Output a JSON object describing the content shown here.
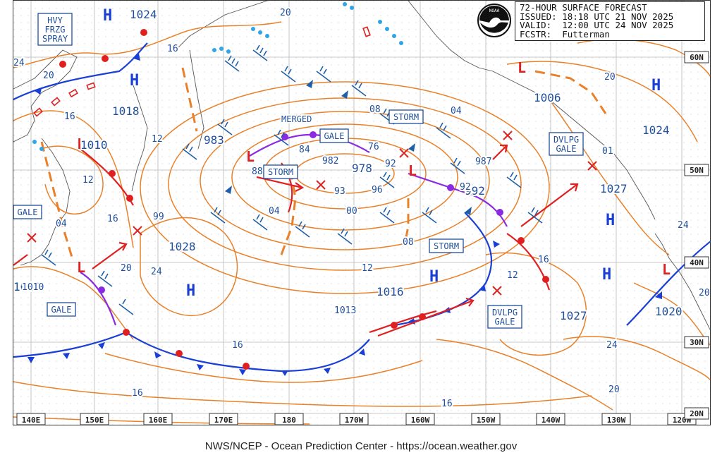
{
  "header": {
    "title": "72-HOUR SURFACE FORECAST",
    "issued": "ISSUED: 18:18 UTC 21 NOV 2025",
    "valid": "VALID:  12:00 UTC 24 NOV 2025",
    "forecaster": "FCSTR:  Futterman"
  },
  "logo_text": "NOAA",
  "footer": "NWS/NCEP - Ocean Prediction Center - https://ocean.weather.gov",
  "longitude_labels": [
    "140E",
    "150E",
    "160E",
    "170E",
    "180",
    "170W",
    "160W",
    "150W",
    "140W",
    "130W",
    "120W"
  ],
  "latitude_labels": [
    "60N",
    "50N",
    "40N",
    "30N",
    "20N"
  ],
  "pressure_centers": [
    {
      "type": "H",
      "value": "1024"
    },
    {
      "type": "H",
      "value": "1018"
    },
    {
      "type": "L",
      "value": "1010"
    },
    {
      "type": "L",
      "value": "1010"
    },
    {
      "type": "L",
      "value": "983"
    },
    {
      "type": "L",
      "value": "978"
    },
    {
      "type": "L",
      "value": "992"
    },
    {
      "type": "L",
      "value": "1006"
    },
    {
      "type": "H",
      "value": "1028"
    },
    {
      "type": "H",
      "value": "1016"
    },
    {
      "type": "H",
      "value": "1024"
    },
    {
      "type": "H",
      "value": "1027"
    },
    {
      "type": "H",
      "value": "1027"
    },
    {
      "type": "L",
      "value": "1020"
    }
  ],
  "isobar_labels": [
    "24",
    "20",
    "16",
    "12",
    "16",
    "04",
    "99",
    "1013",
    "1010",
    "20",
    "24",
    "20",
    "16",
    "12",
    "16",
    "982",
    "93",
    "00",
    "04",
    "08",
    "12",
    "76",
    "84",
    "88",
    "92",
    "96",
    "08",
    "04",
    "92",
    "987",
    "01",
    "20",
    "24",
    "20",
    "16",
    "24",
    "12",
    "16",
    "20",
    "16"
  ],
  "warning_labels": [
    {
      "text": "HVY\nFRZG\nSPRAY"
    },
    {
      "text": "GALE"
    },
    {
      "text": "GALE"
    },
    {
      "text": "GALE"
    },
    {
      "text": "STORM"
    },
    {
      "text": "STORM"
    },
    {
      "text": "STORM"
    },
    {
      "text": "DVLPG\nGALE"
    },
    {
      "text": "DVLPG\nGALE"
    },
    {
      "text": "MERGED"
    }
  ],
  "colors": {
    "isobar": "#e8812a",
    "cold_front": "#1a3fd6",
    "warm_front": "#e02020",
    "occluded_front": "#8a2be2",
    "wind_barb": "#1f5fa8",
    "low_marker": "#e02020",
    "high_marker": "#1a3fd6",
    "label_box_text": "#1f4f9a",
    "grid": "#9a9a9a"
  }
}
